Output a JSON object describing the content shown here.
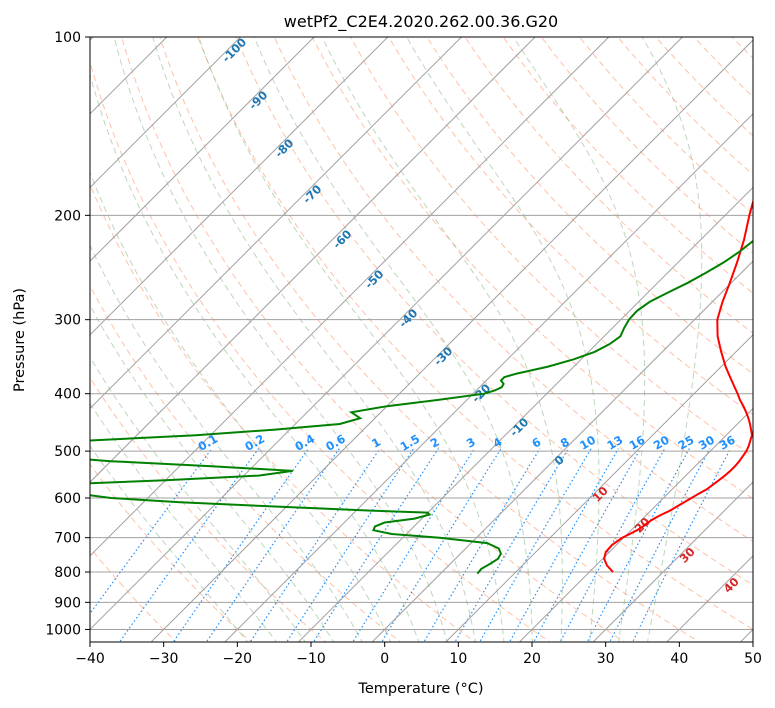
{
  "colors": {
    "temperature": "#ff0000",
    "dewpoint": "#008000",
    "isotherm": "#a0a0a0",
    "isobar": "#a0a0a0",
    "dry_adiabat": "#ffa07a",
    "moist_adiabat": "#8fbc8f",
    "mixing_ratio": "#1e90ff",
    "dry_adiabat_label": "#d62728",
    "moist_adiabat_label": "#1f77b4",
    "lcl_curve": "#c8a882"
  },
  "chart_data": {
    "type": "line",
    "subtype": "skew-t log-p",
    "title": "wetPf2_C2E4.2020.262.00.36.G20",
    "xlabel": "Temperature (°C)",
    "ylabel": "Pressure (hPa)",
    "xlim": [
      -40,
      50
    ],
    "ylim": [
      1050,
      100
    ],
    "x_ticks": [
      "−40",
      "−30",
      "−20",
      "−10",
      "0",
      "10",
      "20",
      "30",
      "40",
      "50"
    ],
    "x_tick_values": [
      -40,
      -30,
      -20,
      -10,
      0,
      10,
      20,
      30,
      40,
      50
    ],
    "y_ticks": [
      "100",
      "200",
      "300",
      "400",
      "500",
      "600",
      "700",
      "800",
      "900",
      "1000"
    ],
    "y_tick_values": [
      100,
      200,
      300,
      400,
      500,
      600,
      700,
      800,
      900,
      1000
    ],
    "series": [
      {
        "name": "temperature",
        "pressure": [
          800,
          780,
          760,
          740,
          720,
          700,
          690,
          680,
          670,
          660,
          650,
          640,
          630,
          620,
          610,
          600,
          590,
          580,
          570,
          560,
          550,
          540,
          530,
          520,
          510,
          500,
          490,
          480,
          470,
          460,
          450,
          440,
          430,
          420,
          410,
          400,
          380,
          360,
          340,
          320,
          300,
          280,
          260,
          240,
          220,
          200,
          190,
          180,
          170,
          160,
          150,
          140,
          130,
          120,
          115,
          110,
          105,
          100
        ],
        "temperature": [
          23.2,
          21.5,
          20.2,
          19.5,
          19.4,
          19.8,
          20.3,
          20.8,
          21.1,
          21.2,
          21.5,
          22.0,
          22.6,
          23.0,
          23.4,
          23.8,
          24.2,
          24.7,
          24.9,
          25.1,
          25.3,
          25.4,
          25.4,
          25.3,
          25.1,
          24.9,
          24.5,
          24.0,
          23.5,
          22.6,
          21.7,
          20.7,
          19.6,
          18.4,
          17.1,
          15.9,
          13.3,
          10.6,
          8.0,
          5.4,
          3.1,
          1.4,
          -0.2,
          -2.0,
          -4.1,
          -6.7,
          -8.0,
          -9.1,
          -10.5,
          -12.1,
          -14.6,
          -17.4,
          -19.9,
          -22.2,
          -22.8,
          -23.1,
          -23.6,
          -24.7
        ]
      },
      {
        "name": "dewpoint",
        "pressure": [
          805,
          790,
          775,
          760,
          745,
          730,
          715,
          700,
          690,
          680,
          670,
          660,
          650,
          640,
          635,
          630,
          620,
          610,
          600,
          590,
          580,
          570,
          560,
          550,
          540,
          530,
          520,
          510,
          500,
          490,
          480,
          470,
          460,
          450,
          440,
          430,
          420,
          410,
          400,
          395,
          390,
          385,
          380,
          375,
          370,
          360,
          350,
          340,
          330,
          320,
          310,
          300,
          290,
          280,
          270,
          260,
          250,
          240,
          230,
          220,
          210,
          200,
          190,
          180,
          170,
          160,
          150,
          140,
          130,
          120,
          110,
          100
        ],
        "dewpoint": [
          5.0,
          4.9,
          5.4,
          5.8,
          5.5,
          4.5,
          2.2,
          -5.0,
          -12.0,
          -15.0,
          -15.3,
          -14.5,
          -11.0,
          -9.5,
          -10.0,
          -18.0,
          -32.0,
          -45.0,
          -55.0,
          -60.0,
          -62.0,
          -65.0,
          -50.0,
          -38.0,
          -34.0,
          -46.0,
          -60.0,
          -70.0,
          -75.0,
          -72.0,
          -66.0,
          -52.0,
          -42.0,
          -34.0,
          -32.0,
          -34.0,
          -30.0,
          -24.0,
          -18.5,
          -17.5,
          -17.0,
          -17.2,
          -18.0,
          -18.0,
          -16.8,
          -13.5,
          -11.0,
          -9.2,
          -8.2,
          -7.8,
          -8.4,
          -8.9,
          -9.0,
          -8.5,
          -7.3,
          -5.9,
          -4.8,
          -3.8,
          -3.1,
          -2.7,
          -2.2,
          -2.0,
          -1.6,
          -1.4,
          -1.3,
          -0.6,
          0.6,
          2.1,
          4.2,
          6.6,
          9.8,
          12.0
        ]
      }
    ],
    "annotations": {
      "dry_adiabat_labels": [
        "-100",
        "-90",
        "-80",
        "-70",
        "-60",
        "-50",
        "-40",
        "-30",
        "-20",
        "-10",
        "0",
        "10",
        "20",
        "30",
        "40"
      ],
      "moist_adiabat_labels": [
        "-100",
        "-90",
        "-80",
        "-70",
        "-60",
        "-50",
        "-40",
        "-30",
        "-20",
        "-10",
        "0"
      ],
      "mixing_ratio_labels": [
        "0.1",
        "0.2",
        "0.4",
        "0.6",
        "1",
        "1.5",
        "2",
        "3",
        "4",
        "6",
        "8",
        "10",
        "13",
        "16",
        "20",
        "25",
        "30",
        "36"
      ],
      "mixing_ratio_values": [
        0.1,
        0.2,
        0.4,
        0.6,
        1,
        1.5,
        2,
        3,
        4,
        6,
        8,
        10,
        13,
        16,
        20,
        25,
        30,
        36
      ]
    }
  }
}
